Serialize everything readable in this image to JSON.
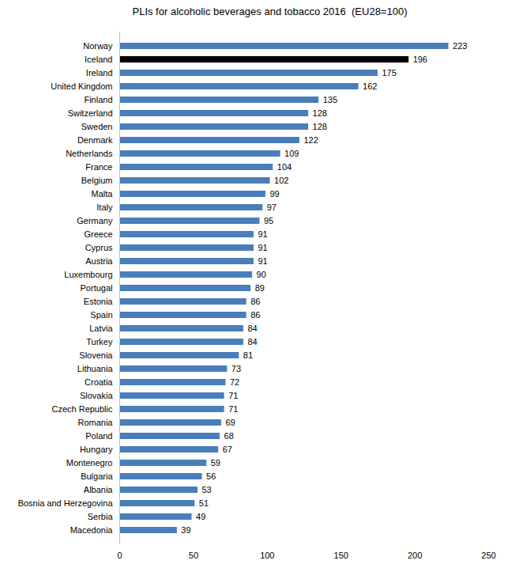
{
  "chart_data": {
    "type": "bar",
    "orientation": "horizontal",
    "title": "PLIs for alcoholic beverages and tobacco 2016  (EU28=100)",
    "categories": [
      "Norway",
      "Iceland",
      "Ireland",
      "United Kingdom",
      "Finland",
      "Switzerland",
      "Sweden",
      "Denmark",
      "Netherlands",
      "France",
      "Belgium",
      "Malta",
      "Italy",
      "Germany",
      "Greece",
      "Cyprus",
      "Austria",
      "Luxembourg",
      "Portugal",
      "Estonia",
      "Spain",
      "Latvia",
      "Turkey",
      "Slovenia",
      "Lithuania",
      "Croatia",
      "Slovakia",
      "Czech Republic",
      "Romania",
      "Poland",
      "Hungary",
      "Montenegro",
      "Bulgaria",
      "Albania",
      "Bosnia and Herzegovina",
      "Serbia",
      "Macedonia"
    ],
    "values": [
      223,
      196,
      175,
      162,
      135,
      128,
      128,
      122,
      109,
      104,
      102,
      99,
      97,
      95,
      91,
      91,
      91,
      90,
      89,
      86,
      86,
      84,
      84,
      81,
      73,
      72,
      71,
      71,
      69,
      68,
      67,
      59,
      56,
      53,
      51,
      49,
      39
    ],
    "colors": [
      "#4a7ebb",
      "#000000",
      "#4a7ebb",
      "#4a7ebb",
      "#4a7ebb",
      "#4a7ebb",
      "#4a7ebb",
      "#4a7ebb",
      "#4a7ebb",
      "#4a7ebb",
      "#4a7ebb",
      "#4a7ebb",
      "#4a7ebb",
      "#4a7ebb",
      "#4a7ebb",
      "#4a7ebb",
      "#4a7ebb",
      "#4a7ebb",
      "#4a7ebb",
      "#4a7ebb",
      "#4a7ebb",
      "#4a7ebb",
      "#4a7ebb",
      "#4a7ebb",
      "#4a7ebb",
      "#4a7ebb",
      "#4a7ebb",
      "#4a7ebb",
      "#4a7ebb",
      "#4a7ebb",
      "#4a7ebb",
      "#4a7ebb",
      "#4a7ebb",
      "#4a7ebb",
      "#4a7ebb",
      "#4a7ebb",
      "#4a7ebb"
    ],
    "xlim": [
      0,
      250
    ],
    "xticks": [
      0,
      50,
      100,
      150,
      200,
      250
    ],
    "grid": false,
    "data_labels": true
  }
}
